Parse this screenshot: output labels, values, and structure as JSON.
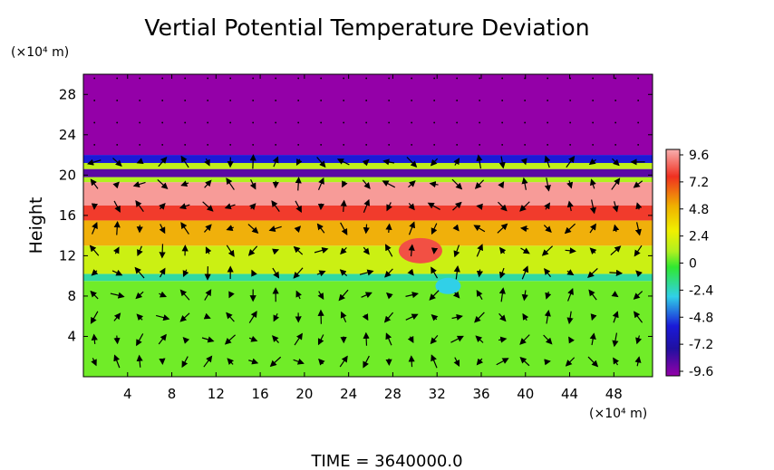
{
  "chart_data": {
    "type": "heatmap",
    "title": "Vertial Potential Temperature Deviation",
    "ylabel": "Height",
    "xunit": "(×10⁴ m)",
    "yunit": "(×10⁴ m)",
    "footer": "TIME = 3640000.0",
    "xlim": [
      0,
      51.5
    ],
    "ylim": [
      0,
      30
    ],
    "xticks": [
      "4",
      "8",
      "12",
      "16",
      "20",
      "24",
      "28",
      "32",
      "36",
      "40",
      "44",
      "48"
    ],
    "xtick_values": [
      4,
      8,
      12,
      16,
      20,
      24,
      28,
      32,
      36,
      40,
      44,
      48
    ],
    "yticks": [
      "4",
      "8",
      "12",
      "16",
      "20",
      "24",
      "28"
    ],
    "ytick_values": [
      4,
      8,
      12,
      16,
      20,
      24,
      28
    ],
    "colorbar": {
      "labels": [
        "9.6",
        "7.2",
        "4.8",
        "2.4",
        "0",
        "-2.4",
        "-4.8",
        "-7.2",
        "-9.6"
      ],
      "range": [
        -9.6,
        9.6
      ]
    },
    "field_bands": [
      {
        "y0": 0,
        "y1": 9.5,
        "value": 1.2
      },
      {
        "y0": 9.5,
        "y1": 10.2,
        "value": -1.5
      },
      {
        "y0": 10.2,
        "y1": 13,
        "value": 3.4
      },
      {
        "y0": 13,
        "y1": 15.5,
        "value": 5.6
      },
      {
        "y0": 15.5,
        "y1": 17,
        "value": 7.4
      },
      {
        "y0": 17,
        "y1": 19.3,
        "value": 9.2
      },
      {
        "y0": 19.3,
        "y1": 19.8,
        "value": 2.4
      },
      {
        "y0": 19.8,
        "y1": 20.6,
        "value": -8.4
      },
      {
        "y0": 20.6,
        "y1": 21.2,
        "value": 3.0
      },
      {
        "y0": 21.2,
        "y1": 22,
        "value": -4.8
      },
      {
        "y0": 22,
        "y1": 30,
        "value": -9.6
      }
    ],
    "colors": {
      "purple": "#9400a8",
      "magenta": "#d000d8",
      "blue": "#1a1ad8",
      "cyan": "#30d0e8",
      "green": "#30e830",
      "yellowgreen": "#b0f020",
      "yellow": "#f0f000",
      "orange": "#f0b000",
      "red": "#f03020",
      "pink": "#f8b0b0"
    }
  }
}
